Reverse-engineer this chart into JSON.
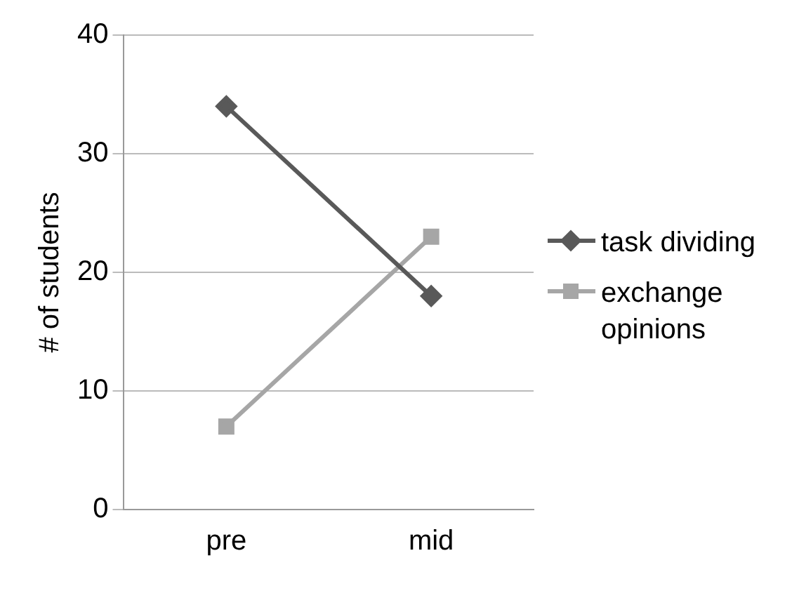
{
  "chart_data": {
    "type": "line",
    "ylabel": "# of students",
    "categories": [
      "pre",
      "mid"
    ],
    "series": [
      {
        "name": "task dividing",
        "color": "#595959",
        "values": [
          34,
          18
        ],
        "marker": "diamond"
      },
      {
        "name": "exchange opinions",
        "color": "#a6a6a6",
        "values": [
          7,
          23
        ],
        "marker": "square"
      }
    ],
    "ylim": [
      0,
      40
    ],
    "yticks": [
      0,
      10,
      20,
      30,
      40
    ],
    "grid": "y",
    "legend": "right",
    "line_style": "solid"
  }
}
